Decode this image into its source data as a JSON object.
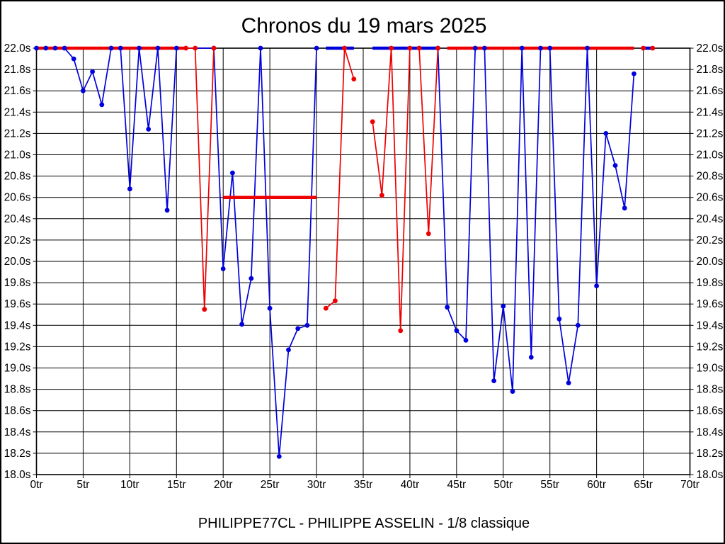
{
  "page": {
    "background": "#ffffff",
    "border_color": "#000000"
  },
  "chart_data": {
    "type": "line",
    "title": "Chronos du 19 mars 2025",
    "caption": "PHILIPPE77CL - PHILIPPE ASSELIN - 1/8 classique",
    "x_unit": "tr",
    "y_unit": "s",
    "xlim": [
      0,
      70
    ],
    "ylim": [
      18.0,
      22.0
    ],
    "x_tick_step": 5,
    "y_tick_step": 0.2,
    "grid": true,
    "clip_ceiling_seconds": 22.0,
    "x_tick_labels": [
      "0tr",
      "5tr",
      "10tr",
      "15tr",
      "20tr",
      "25tr",
      "30tr",
      "35tr",
      "40tr",
      "45tr",
      "50tr",
      "55tr",
      "60tr",
      "65tr",
      "70tr"
    ],
    "y_tick_labels": [
      "22.0s",
      "21.8s",
      "21.6s",
      "21.4s",
      "21.2s",
      "21.0s",
      "20.8s",
      "20.6s",
      "20.4s",
      "20.2s",
      "20.0s",
      "19.8s",
      "19.6s",
      "19.4s",
      "19.2s",
      "19.0s",
      "18.8s",
      "18.6s",
      "18.4s",
      "18.2s",
      "18.0s"
    ],
    "series": [
      {
        "name": "blue-driver",
        "color": "#0000dd",
        "segments": [
          {
            "thick": false,
            "markers": true,
            "points": [
              [
                0,
                22
              ],
              [
                1,
                22
              ],
              [
                2,
                22
              ],
              [
                3,
                22
              ],
              [
                4,
                21.9
              ],
              [
                5,
                21.6
              ],
              [
                6,
                21.78
              ],
              [
                7,
                21.47
              ],
              [
                8,
                22
              ],
              [
                9,
                22
              ],
              [
                10,
                20.68
              ],
              [
                11,
                22
              ],
              [
                12,
                21.24
              ],
              [
                13,
                22
              ],
              [
                14,
                20.48
              ],
              [
                15,
                22
              ],
              [
                19,
                22
              ],
              [
                20,
                19.93
              ],
              [
                21,
                20.83
              ],
              [
                22,
                19.41
              ],
              [
                23,
                19.84
              ],
              [
                24,
                22
              ],
              [
                25,
                19.56
              ],
              [
                26,
                18.17
              ],
              [
                27,
                19.17
              ],
              [
                28,
                19.37
              ],
              [
                29,
                19.4
              ],
              [
                30,
                22
              ]
            ]
          },
          {
            "thick": true,
            "markers": false,
            "points": [
              [
                31,
                22
              ],
              [
                34,
                22
              ]
            ]
          },
          {
            "thick": true,
            "markers": false,
            "points": [
              [
                36,
                22
              ],
              [
                43,
                22
              ]
            ]
          },
          {
            "thick": false,
            "markers": true,
            "points": [
              [
                43,
                22
              ],
              [
                44,
                19.57
              ],
              [
                45,
                19.35
              ],
              [
                46,
                19.26
              ],
              [
                47,
                22
              ],
              [
                48,
                22
              ],
              [
                49,
                18.88
              ],
              [
                50,
                19.58
              ],
              [
                51,
                18.78
              ],
              [
                52,
                22
              ],
              [
                53,
                19.1
              ],
              [
                54,
                22
              ],
              [
                55,
                22
              ],
              [
                56,
                19.46
              ],
              [
                57,
                18.86
              ],
              [
                58,
                19.4
              ],
              [
                59,
                22
              ],
              [
                60,
                19.77
              ],
              [
                61,
                21.2
              ],
              [
                62,
                20.9
              ],
              [
                63,
                20.5
              ],
              [
                64,
                21.76
              ]
            ]
          },
          {
            "thick": true,
            "markers": false,
            "points": [
              [
                65,
                22
              ],
              [
                66,
                22
              ]
            ]
          }
        ]
      },
      {
        "name": "red-driver",
        "color": "#ee0000",
        "segments": [
          {
            "thick": true,
            "markers": false,
            "points": [
              [
                0,
                22
              ],
              [
                16,
                22
              ]
            ]
          },
          {
            "thick": false,
            "markers": true,
            "points": [
              [
                16,
                22
              ],
              [
                17,
                22
              ],
              [
                18,
                19.55
              ],
              [
                19,
                22
              ]
            ]
          },
          {
            "thick": true,
            "markers": false,
            "points": [
              [
                20,
                20.6
              ],
              [
                30,
                20.6
              ]
            ]
          },
          {
            "thick": false,
            "markers": true,
            "points": [
              [
                31,
                19.56
              ],
              [
                32,
                19.63
              ],
              [
                33,
                22
              ],
              [
                34,
                21.71
              ]
            ]
          },
          {
            "thick": false,
            "markers": true,
            "points": [
              [
                36,
                21.31
              ],
              [
                37,
                20.62
              ],
              [
                38,
                22
              ],
              [
                39,
                19.35
              ],
              [
                40,
                22
              ],
              [
                41,
                22
              ],
              [
                42,
                20.26
              ],
              [
                43,
                22
              ]
            ]
          },
          {
            "thick": true,
            "markers": false,
            "points": [
              [
                44,
                22
              ],
              [
                64,
                22
              ]
            ]
          },
          {
            "thick": false,
            "markers": true,
            "points": [
              [
                65,
                22
              ],
              [
                66,
                22
              ]
            ]
          }
        ]
      }
    ]
  }
}
